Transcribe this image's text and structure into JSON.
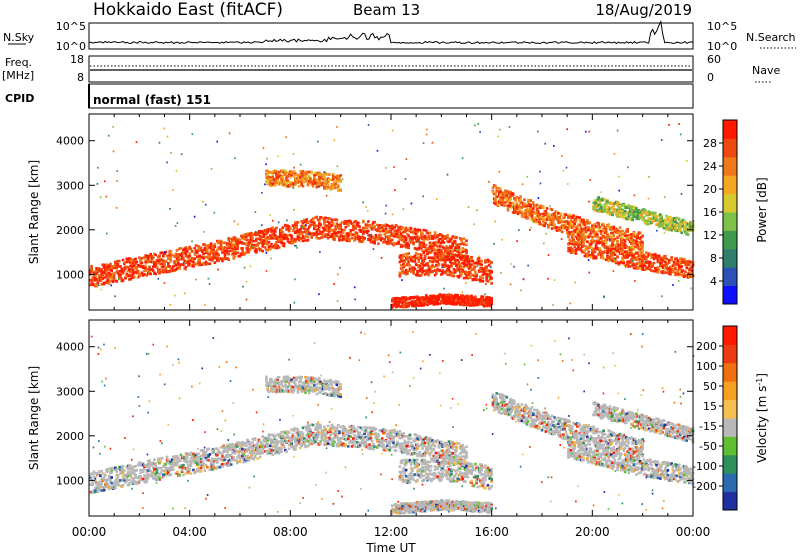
{
  "header": {
    "station": "Hokkaido East (fitACF)",
    "beam": "Beam 13",
    "date": "18/Aug/2019"
  },
  "summary": {
    "nsky_label": "N.Sky",
    "nsky_ticks": [
      "10^5",
      "10^0"
    ],
    "nsearch_label": "N.Search",
    "nsearch_ticks": [
      "10^5",
      "10^0"
    ],
    "freq_label": "Freq.",
    "freq_unit": "[MHz]",
    "freq_ticks": [
      "18",
      "8"
    ],
    "nave_label": "Nave",
    "nave_ticks": [
      "60",
      "0"
    ],
    "cpid_label": "CPID",
    "cpid_value": "normal (fast) 151"
  },
  "chart_data": [
    {
      "type": "heatmap",
      "name": "power-panel",
      "xlabel": "",
      "ylabel": "Slant Range [km]",
      "ylim": [
        200,
        4600
      ],
      "yticks": [
        "1000",
        "2000",
        "3000",
        "4000"
      ],
      "xlim": [
        "00:00",
        "24:00"
      ],
      "colorbar": {
        "label": "Power [dB]",
        "ticks": [
          "4",
          "8",
          "12",
          "16",
          "20",
          "24",
          "28"
        ],
        "colors": [
          "#1010ff",
          "#2a52b8",
          "#2f7d6a",
          "#3f9a4e",
          "#7ec24a",
          "#d8c830",
          "#f5a623",
          "#f07818",
          "#ee4a10",
          "#ff1a00"
        ]
      },
      "echo_bands": [
        {
          "t": [
            0,
            5,
            9,
            12,
            15
          ],
          "r": [
            950,
            1500,
            2050,
            1900,
            1550
          ],
          "w": 240,
          "level": 0.88
        },
        {
          "t": [
            7,
            8.5,
            10
          ],
          "r": [
            3150,
            3150,
            3050
          ],
          "w": 180,
          "level": 0.75
        },
        {
          "t": [
            12.3,
            14,
            16
          ],
          "r": [
            1200,
            1250,
            1050
          ],
          "w": 260,
          "level": 0.9
        },
        {
          "t": [
            12,
            14,
            16
          ],
          "r": [
            350,
            450,
            380
          ],
          "w": 110,
          "level": 1.0
        },
        {
          "t": [
            16,
            18.5,
            22
          ],
          "r": [
            2800,
            2200,
            1700
          ],
          "w": 220,
          "level": 0.8
        },
        {
          "t": [
            19,
            21.5,
            24
          ],
          "r": [
            1700,
            1350,
            1100
          ],
          "w": 200,
          "level": 0.85
        },
        {
          "t": [
            20,
            22,
            24
          ],
          "r": [
            2600,
            2300,
            2000
          ],
          "w": 160,
          "level": 0.5
        }
      ]
    },
    {
      "type": "heatmap",
      "name": "velocity-panel",
      "xlabel": "Time UT",
      "ylabel": "Slant Range [km]",
      "ylim": [
        200,
        4600
      ],
      "yticks": [
        "1000",
        "2000",
        "3000",
        "4000"
      ],
      "xticks": [
        "00:00",
        "04:00",
        "08:00",
        "12:00",
        "16:00",
        "20:00",
        "00:00"
      ],
      "xlim": [
        "00:00",
        "24:00"
      ],
      "colorbar": {
        "label": "Velocity [m s^-1]",
        "ticks": [
          "200",
          "100",
          "50",
          "15",
          "-15",
          "-50",
          "-100",
          "-200"
        ],
        "colors": [
          "#2030a0",
          "#2a6ab0",
          "#2f8f5a",
          "#5fbf30",
          "#b8b8b8",
          "#f5c050",
          "#f5a020",
          "#f07010",
          "#ee3a10",
          "#ff1a00"
        ]
      },
      "echo_bands": [
        {
          "t": [
            0,
            5,
            9,
            12,
            15
          ],
          "r": [
            950,
            1500,
            2050,
            1900,
            1550
          ],
          "w": 240,
          "level": 0.5
        },
        {
          "t": [
            7,
            8.5,
            10
          ],
          "r": [
            3150,
            3150,
            3050
          ],
          "w": 180,
          "level": 0.45
        },
        {
          "t": [
            12.3,
            14,
            16
          ],
          "r": [
            1200,
            1250,
            1050
          ],
          "w": 260,
          "level": 0.7
        },
        {
          "t": [
            12,
            14,
            16
          ],
          "r": [
            350,
            450,
            380
          ],
          "w": 110,
          "level": 0.3
        },
        {
          "t": [
            16,
            18.5,
            22
          ],
          "r": [
            2800,
            2200,
            1700
          ],
          "w": 220,
          "level": 0.5
        },
        {
          "t": [
            19,
            21.5,
            24
          ],
          "r": [
            1700,
            1350,
            1100
          ],
          "w": 200,
          "level": 0.5
        },
        {
          "t": [
            20,
            22,
            24
          ],
          "r": [
            2600,
            2300,
            2000
          ],
          "w": 160,
          "level": 0.48
        }
      ]
    }
  ]
}
